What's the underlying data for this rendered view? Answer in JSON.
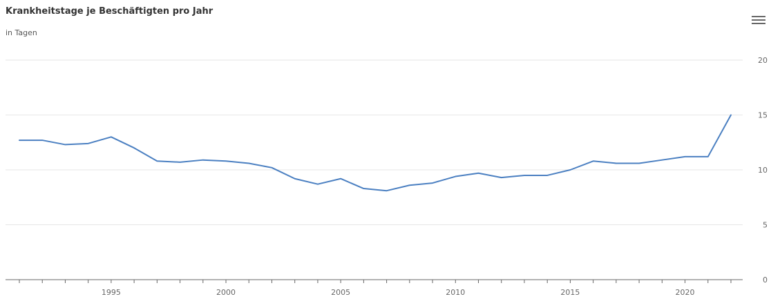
{
  "header": {
    "title": "Krankheitstage je Beschäftigten pro Jahr",
    "subtitle": "in Tagen",
    "menu_icon": "hamburger-menu-icon"
  },
  "colors": {
    "line": "#4a7fc1",
    "grid": "#e6e6e6",
    "axis": "#666666"
  },
  "chart_data": {
    "type": "line",
    "title": "Krankheitstage je Beschäftigten pro Jahr",
    "subtitle": "in Tagen",
    "xlabel": "",
    "ylabel": "",
    "x": [
      1991,
      1992,
      1993,
      1994,
      1995,
      1996,
      1997,
      1998,
      1999,
      2000,
      2001,
      2002,
      2003,
      2004,
      2005,
      2006,
      2007,
      2008,
      2009,
      2010,
      2011,
      2012,
      2013,
      2014,
      2015,
      2016,
      2017,
      2018,
      2019,
      2020,
      2021,
      2022
    ],
    "series": [
      {
        "name": "",
        "values": [
          12.7,
          12.7,
          12.3,
          12.4,
          13.0,
          12.0,
          10.8,
          10.7,
          10.9,
          10.8,
          10.6,
          10.2,
          9.2,
          8.7,
          9.2,
          8.3,
          8.1,
          8.6,
          8.8,
          9.4,
          9.7,
          9.3,
          9.5,
          9.5,
          10.0,
          10.8,
          10.6,
          10.6,
          10.9,
          11.2,
          11.2,
          15.0
        ]
      }
    ],
    "x_tick_labels": [
      "1995",
      "2000",
      "2005",
      "2010",
      "2015",
      "2020"
    ],
    "y_tick_labels": [
      "0",
      "5",
      "10",
      "15",
      "20"
    ],
    "xlim": [
      1991,
      2022
    ],
    "ylim": [
      0,
      20
    ],
    "y_axis_side": "right",
    "grid": true,
    "legend": "none"
  }
}
